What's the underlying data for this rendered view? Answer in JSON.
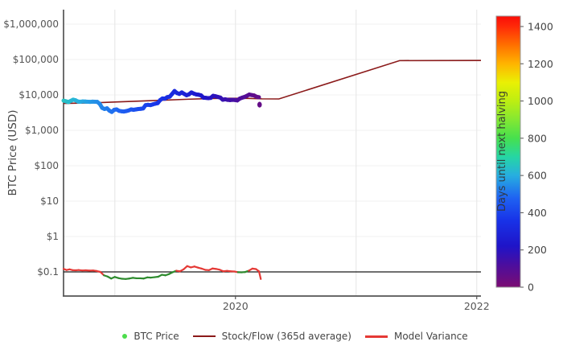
{
  "legend": {
    "items": [
      {
        "label": "BTC Price",
        "marker": "dot",
        "color": "#4cdd4c"
      },
      {
        "label": "Stock/Flow (365d average)",
        "marker": "line",
        "color": "#8b1a1a"
      },
      {
        "label": "Model Variance",
        "marker": "line",
        "color": "#e53935"
      }
    ]
  },
  "chart_data": {
    "type": "scatter",
    "title": "",
    "xlabel": "",
    "ylabel": "BTC Price (USD)",
    "y_scale": "log",
    "x_range": [
      2018.575,
      2022.035
    ],
    "x_gridlines": [
      2019,
      2020,
      2021,
      2022
    ],
    "x_tick_labels": [
      {
        "value": 2020,
        "label": "2020"
      },
      {
        "value": 2022,
        "label": "2022"
      }
    ],
    "y_tick_labels": [
      {
        "value": 1000000,
        "label": "$1,000,000"
      },
      {
        "value": 100000,
        "label": "$100,000"
      },
      {
        "value": 10000,
        "label": "$10,000"
      },
      {
        "value": 1000,
        "label": "$1,000"
      },
      {
        "value": 100,
        "label": "$100"
      },
      {
        "value": 10,
        "label": "$10"
      },
      {
        "value": 1,
        "label": "$1"
      },
      {
        "value": 0.1,
        "label": "$0.1"
      }
    ],
    "grid_color": "#e9e9e9",
    "axis_color": "#555555",
    "tick_text_color": "#555555",
    "halving_date": 2020.36,
    "colorbar": {
      "label": "Days until next halving",
      "range": [
        0,
        1456
      ],
      "ticks": [
        0,
        200,
        400,
        600,
        800,
        1000,
        1200,
        1400
      ],
      "stops": [
        [
          0,
          "#7b0c72"
        ],
        [
          120,
          "#4b0e9e"
        ],
        [
          220,
          "#1f14c8"
        ],
        [
          360,
          "#1833e8"
        ],
        [
          480,
          "#1f63f2"
        ],
        [
          600,
          "#27aee0"
        ],
        [
          700,
          "#26d6a4"
        ],
        [
          800,
          "#46e04e"
        ],
        [
          900,
          "#84e832"
        ],
        [
          1000,
          "#bdee12"
        ],
        [
          1100,
          "#eaf004"
        ],
        [
          1200,
          "#ffb400"
        ],
        [
          1300,
          "#ff7000"
        ],
        [
          1400,
          "#ff2a08"
        ],
        [
          1456,
          "#f90d07"
        ]
      ]
    },
    "series": {
      "btc_price": {
        "name": "BTC Price",
        "marker_size": 5,
        "points": [
          [
            2018.575,
            6900
          ],
          [
            2018.595,
            6600
          ],
          [
            2018.615,
            6300
          ],
          [
            2018.635,
            6800
          ],
          [
            2018.655,
            7350
          ],
          [
            2018.675,
            7050
          ],
          [
            2018.695,
            6500
          ],
          [
            2018.715,
            6400
          ],
          [
            2018.735,
            6550
          ],
          [
            2018.755,
            6500
          ],
          [
            2018.775,
            6400
          ],
          [
            2018.795,
            6350
          ],
          [
            2018.815,
            6450
          ],
          [
            2018.835,
            6400
          ],
          [
            2018.855,
            6350
          ],
          [
            2018.875,
            5600
          ],
          [
            2018.895,
            4300
          ],
          [
            2018.915,
            4000
          ],
          [
            2018.935,
            4200
          ],
          [
            2018.955,
            3600
          ],
          [
            2018.975,
            3300
          ],
          [
            2018.995,
            3800
          ],
          [
            2019.015,
            3900
          ],
          [
            2019.035,
            3550
          ],
          [
            2019.055,
            3450
          ],
          [
            2019.075,
            3400
          ],
          [
            2019.095,
            3500
          ],
          [
            2019.115,
            3650
          ],
          [
            2019.135,
            3900
          ],
          [
            2019.155,
            3800
          ],
          [
            2019.175,
            3900
          ],
          [
            2019.195,
            4000
          ],
          [
            2019.215,
            4050
          ],
          [
            2019.235,
            4150
          ],
          [
            2019.255,
            5150
          ],
          [
            2019.275,
            5250
          ],
          [
            2019.295,
            5150
          ],
          [
            2019.315,
            5400
          ],
          [
            2019.335,
            5650
          ],
          [
            2019.355,
            5850
          ],
          [
            2019.375,
            7100
          ],
          [
            2019.395,
            7950
          ],
          [
            2019.415,
            7850
          ],
          [
            2019.435,
            8650
          ],
          [
            2019.455,
            8900
          ],
          [
            2019.475,
            10700
          ],
          [
            2019.495,
            12900
          ],
          [
            2019.515,
            11300
          ],
          [
            2019.535,
            10700
          ],
          [
            2019.555,
            11800
          ],
          [
            2019.575,
            10700
          ],
          [
            2019.595,
            9800
          ],
          [
            2019.615,
            10400
          ],
          [
            2019.635,
            11800
          ],
          [
            2019.655,
            10900
          ],
          [
            2019.675,
            10350
          ],
          [
            2019.695,
            10150
          ],
          [
            2019.715,
            9700
          ],
          [
            2019.735,
            8350
          ],
          [
            2019.755,
            8250
          ],
          [
            2019.775,
            8100
          ],
          [
            2019.795,
            8250
          ],
          [
            2019.815,
            9450
          ],
          [
            2019.835,
            9150
          ],
          [
            2019.855,
            8750
          ],
          [
            2019.875,
            8400
          ],
          [
            2019.895,
            7300
          ],
          [
            2019.915,
            7550
          ],
          [
            2019.935,
            7250
          ],
          [
            2019.955,
            7150
          ],
          [
            2019.975,
            7250
          ],
          [
            2019.995,
            7200
          ],
          [
            2020.015,
            7000
          ],
          [
            2020.035,
            7850
          ],
          [
            2020.055,
            8350
          ],
          [
            2020.075,
            8750
          ],
          [
            2020.095,
            9450
          ],
          [
            2020.115,
            10250
          ],
          [
            2020.135,
            9900
          ],
          [
            2020.155,
            9650
          ],
          [
            2020.175,
            8850
          ],
          [
            2020.195,
            8600
          ]
        ],
        "outlier": [
          2020.2,
          5300
        ]
      },
      "stock_flow": {
        "name": "Stock/Flow (365d average)",
        "color": "#8b1a1a",
        "width": 1.6,
        "points": [
          [
            2018.575,
            5750
          ],
          [
            2018.8,
            5950
          ],
          [
            2019.0,
            6300
          ],
          [
            2019.2,
            6700
          ],
          [
            2019.4,
            7100
          ],
          [
            2019.6,
            7550
          ],
          [
            2019.8,
            7900
          ],
          [
            2019.95,
            8050
          ],
          [
            2020.1,
            8000
          ],
          [
            2020.22,
            7750
          ],
          [
            2020.36,
            7700
          ],
          [
            2021.36,
            93000
          ],
          [
            2022.035,
            94000
          ]
        ]
      },
      "model_variance": {
        "name": "Model Variance",
        "color_above": "#e53935",
        "color_below": "#2e8b2e",
        "threshold": 0.1,
        "width": 2.2,
        "points": [
          [
            2018.575,
            0.122
          ],
          [
            2018.6,
            0.113
          ],
          [
            2018.625,
            0.118
          ],
          [
            2018.65,
            0.112
          ],
          [
            2018.675,
            0.111
          ],
          [
            2018.7,
            0.113
          ],
          [
            2018.73,
            0.11
          ],
          [
            2018.76,
            0.111
          ],
          [
            2018.79,
            0.109
          ],
          [
            2018.82,
            0.11
          ],
          [
            2018.85,
            0.106
          ],
          [
            2018.88,
            0.1
          ],
          [
            2018.91,
            0.08
          ],
          [
            2018.94,
            0.074
          ],
          [
            2018.97,
            0.065
          ],
          [
            2019.0,
            0.072
          ],
          [
            2019.03,
            0.067
          ],
          [
            2019.06,
            0.064
          ],
          [
            2019.09,
            0.063
          ],
          [
            2019.12,
            0.065
          ],
          [
            2019.15,
            0.068
          ],
          [
            2019.18,
            0.066
          ],
          [
            2019.21,
            0.066
          ],
          [
            2019.24,
            0.065
          ],
          [
            2019.27,
            0.07
          ],
          [
            2019.3,
            0.069
          ],
          [
            2019.33,
            0.071
          ],
          [
            2019.36,
            0.073
          ],
          [
            2019.39,
            0.083
          ],
          [
            2019.42,
            0.08
          ],
          [
            2019.45,
            0.087
          ],
          [
            2019.48,
            0.098
          ],
          [
            2019.51,
            0.108
          ],
          [
            2019.54,
            0.104
          ],
          [
            2019.57,
            0.118
          ],
          [
            2019.6,
            0.146
          ],
          [
            2019.63,
            0.134
          ],
          [
            2019.66,
            0.142
          ],
          [
            2019.69,
            0.132
          ],
          [
            2019.72,
            0.124
          ],
          [
            2019.75,
            0.114
          ],
          [
            2019.78,
            0.112
          ],
          [
            2019.81,
            0.125
          ],
          [
            2019.84,
            0.121
          ],
          [
            2019.87,
            0.115
          ],
          [
            2019.9,
            0.104
          ],
          [
            2019.93,
            0.107
          ],
          [
            2019.96,
            0.104
          ],
          [
            2019.99,
            0.103
          ],
          [
            2020.02,
            0.098
          ],
          [
            2020.05,
            0.097
          ],
          [
            2020.08,
            0.099
          ],
          [
            2020.11,
            0.108
          ],
          [
            2020.14,
            0.124
          ],
          [
            2020.17,
            0.12
          ],
          [
            2020.195,
            0.104
          ],
          [
            2020.21,
            0.063
          ]
        ]
      },
      "baseline": {
        "value": 0.1,
        "color": "#1a1a1a",
        "width": 1.3
      }
    }
  }
}
